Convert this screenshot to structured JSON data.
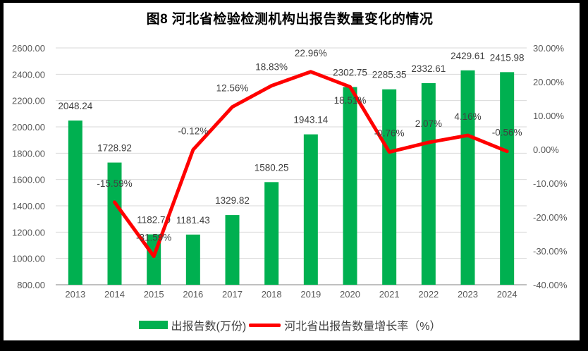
{
  "chart_data": {
    "type": "bar+line",
    "title": "图8 河北省检验检测机构出报告数量变化的情况",
    "categories": [
      "2013",
      "2014",
      "2015",
      "2016",
      "2017",
      "2018",
      "2019",
      "2020",
      "2021",
      "2022",
      "2023",
      "2024"
    ],
    "series": [
      {
        "name": "出报告数(万份)",
        "type": "bar",
        "axis": "left",
        "color": "#00B050",
        "values": [
          2048.24,
          1728.92,
          1182.79,
          1181.43,
          1329.82,
          1580.25,
          1943.14,
          2302.75,
          2285.35,
          2332.61,
          2429.61,
          2415.98
        ],
        "labels": [
          "2048.24",
          "1728.92",
          "1182.79",
          "1181.43",
          "1329.82",
          "1580.25",
          "1943.14",
          "2302.75",
          "2285.35",
          "2332.61",
          "2429.61",
          "2415.98"
        ]
      },
      {
        "name": "河北省出报告数量增长率（%）",
        "type": "line",
        "axis": "right",
        "color": "#FF0000",
        "values": [
          null,
          -15.59,
          -31.59,
          -0.12,
          12.56,
          18.83,
          22.96,
          18.51,
          -0.76,
          2.07,
          4.16,
          -0.56
        ],
        "labels": [
          null,
          "-15.59%",
          "-31.59%",
          "-0.12%",
          "12.56%",
          "18.83%",
          "22.96%",
          "18.51%",
          "-0.76%",
          "2.07%",
          "4.16%",
          "-0.56%"
        ],
        "label_below_categories": [
          "2020"
        ]
      }
    ],
    "left_axis": {
      "min": 800,
      "max": 2600,
      "step": 200,
      "tick_labels": [
        "800.00",
        "1000.00",
        "1200.00",
        "1400.00",
        "1600.00",
        "1800.00",
        "2000.00",
        "2200.00",
        "2400.00",
        "2600.00"
      ]
    },
    "right_axis": {
      "min": -40,
      "max": 30,
      "step": 10,
      "tick_labels": [
        "-40.00%",
        "-30.00%",
        "-20.00%",
        "-10.00%",
        "0.00%",
        "10.00%",
        "20.00%",
        "30.00%"
      ]
    },
    "grid": true,
    "legend_position": "bottom",
    "colors": {
      "bar": "#00B050",
      "line": "#FF0000",
      "gridline": "#D9D9D9",
      "axis_line": "#ABABAB",
      "axis_label": "#595959",
      "data_label": "#404040",
      "frame_border": "#000000"
    }
  }
}
